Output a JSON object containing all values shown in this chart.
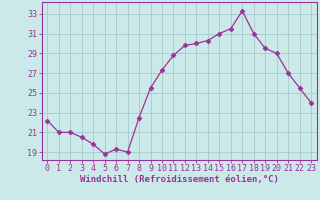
{
  "hours": [
    0,
    1,
    2,
    3,
    4,
    5,
    6,
    7,
    8,
    9,
    10,
    11,
    12,
    13,
    14,
    15,
    16,
    17,
    18,
    19,
    20,
    21,
    22,
    23
  ],
  "values": [
    22.2,
    21.0,
    21.0,
    20.5,
    19.8,
    18.8,
    19.3,
    19.0,
    22.5,
    25.5,
    27.3,
    28.8,
    29.8,
    30.0,
    30.3,
    31.0,
    31.5,
    33.3,
    31.0,
    29.5,
    29.0,
    27.0,
    25.5,
    24.0
  ],
  "line_color": "#993399",
  "marker": "D",
  "marker_size": 2.5,
  "background_color": "#cce9e9",
  "grid_color": "#aacfcf",
  "ylabel_ticks": [
    19,
    21,
    23,
    25,
    27,
    29,
    31,
    33
  ],
  "ylim": [
    18.2,
    34.2
  ],
  "xlim": [
    -0.5,
    23.5
  ],
  "xlabel": "Windchill (Refroidissement éolien,°C)",
  "xlabel_fontsize": 6.5,
  "tick_fontsize": 6.0,
  "linewidth": 0.9
}
